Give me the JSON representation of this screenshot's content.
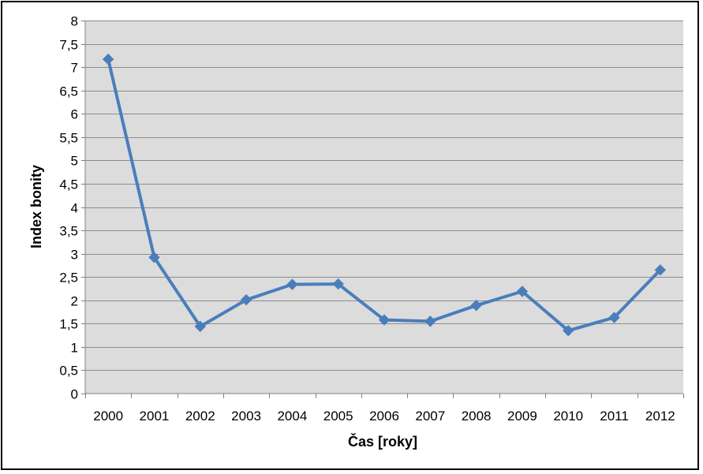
{
  "colors": {
    "plot_background": "#DCDCDC",
    "gridline": "#8C8C8C",
    "axis": "#808080",
    "series_line": "#4A7EBB",
    "marker": "#4A7EBB"
  },
  "chart_data": {
    "type": "line",
    "title": "",
    "xlabel": "Čas [roky]",
    "ylabel": "Index bonity",
    "categories": [
      "2000",
      "2001",
      "2002",
      "2003",
      "2004",
      "2005",
      "2006",
      "2007",
      "2008",
      "2009",
      "2010",
      "2011",
      "2012"
    ],
    "series": [
      {
        "name": "Index bonity",
        "marker": "diamond",
        "values": [
          7.17,
          2.92,
          1.44,
          2.01,
          2.34,
          2.35,
          1.58,
          1.55,
          1.89,
          2.19,
          1.35,
          1.63,
          2.65
        ]
      }
    ],
    "ylim": [
      0,
      8
    ],
    "ystep": 0.5,
    "ytick_labels": [
      "0",
      "0,5",
      "1",
      "1,5",
      "2",
      "2,5",
      "3",
      "3,5",
      "4",
      "4,5",
      "5",
      "5,5",
      "6",
      "6,5",
      "7",
      "7,5",
      "8"
    ],
    "grid": true,
    "legend": "none"
  }
}
